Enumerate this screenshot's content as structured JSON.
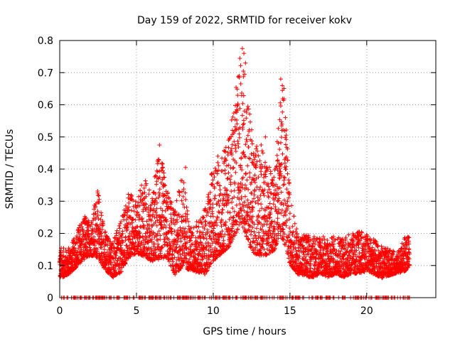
{
  "chart_data": {
    "type": "scatter",
    "title": "Day 159 of 2022, SRMTID for receiver kokv",
    "xlabel": "GPS time / hours",
    "ylabel": "SRMTID / TECUs",
    "xlim": [
      0,
      24.5
    ],
    "ylim": [
      0,
      0.8
    ],
    "xticks": [
      0,
      5,
      10,
      15,
      20
    ],
    "xtick_labels": [
      "0",
      "5",
      "10",
      "15",
      "20"
    ],
    "yticks": [
      0,
      0.1,
      0.2,
      0.3,
      0.4,
      0.5,
      0.6,
      0.7,
      0.8
    ],
    "ytick_labels": [
      "0",
      "0.1",
      "0.2",
      "0.3",
      "0.4",
      "0.5",
      "0.6",
      "0.7",
      "0.8"
    ],
    "grid": true,
    "marker": "plus",
    "series": [
      {
        "name": "SRMTID",
        "color": "#ff0000",
        "envelope": {
          "hours": [
            0,
            0.5,
            1,
            1.5,
            2,
            2.5,
            3,
            3.5,
            4,
            4.5,
            5,
            5.5,
            6,
            6.5,
            7,
            7.5,
            8,
            8.5,
            9,
            9.5,
            10,
            10.5,
            11,
            11.5,
            11.8,
            12,
            12.3,
            12.6,
            13,
            13.5,
            14,
            14.3,
            14.6,
            15,
            15.5,
            16,
            16.5,
            17,
            17.5,
            18,
            18.5,
            19,
            19.5,
            20,
            20.5,
            21,
            21.5,
            22,
            22.5,
            22.8
          ],
          "low": [
            0.05,
            0.06,
            0.08,
            0.1,
            0.12,
            0.1,
            0.07,
            0.05,
            0.06,
            0.1,
            0.12,
            0.1,
            0.09,
            0.08,
            0.1,
            0.05,
            0.06,
            0.07,
            0.06,
            0.05,
            0.08,
            0.1,
            0.12,
            0.15,
            0.18,
            0.15,
            0.12,
            0.1,
            0.09,
            0.1,
            0.12,
            0.15,
            0.12,
            0.08,
            0.06,
            0.05,
            0.05,
            0.06,
            0.05,
            0.06,
            0.05,
            0.06,
            0.06,
            0.07,
            0.06,
            0.05,
            0.06,
            0.07,
            0.07,
            0.09
          ],
          "high": [
            0.16,
            0.15,
            0.19,
            0.26,
            0.24,
            0.34,
            0.2,
            0.18,
            0.24,
            0.34,
            0.3,
            0.38,
            0.32,
            0.47,
            0.34,
            0.27,
            0.4,
            0.22,
            0.24,
            0.28,
            0.42,
            0.44,
            0.49,
            0.66,
            0.77,
            0.74,
            0.62,
            0.48,
            0.5,
            0.42,
            0.4,
            0.62,
            0.68,
            0.32,
            0.2,
            0.2,
            0.19,
            0.2,
            0.18,
            0.2,
            0.19,
            0.2,
            0.21,
            0.2,
            0.18,
            0.16,
            0.15,
            0.14,
            0.19,
            0.19
          ]
        },
        "peaks": [
          [
            6.5,
            0.475
          ],
          [
            8.2,
            0.405
          ],
          [
            10.3,
            0.44
          ],
          [
            11.0,
            0.49
          ],
          [
            11.9,
            0.775
          ],
          [
            12.0,
            0.76
          ],
          [
            12.1,
            0.73
          ],
          [
            13.4,
            0.5
          ],
          [
            14.4,
            0.68
          ],
          [
            14.5,
            0.66
          ],
          [
            14.7,
            0.56
          ]
        ]
      }
    ]
  }
}
